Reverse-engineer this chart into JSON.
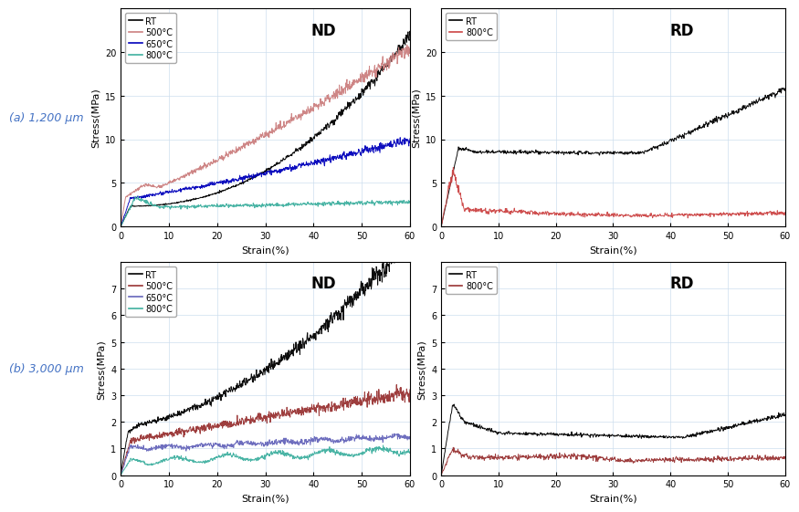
{
  "fig_width": 8.56,
  "fig_height": 5.56,
  "background_color": "#ffffff",
  "label_a": "(a) 1,200 μm",
  "label_b": "(b) 3,000 μm",
  "label_color": "#4472c4",
  "plots": [
    {
      "title": "ND",
      "xlabel": "Strain(%)",
      "ylabel": "Stress(MPa)",
      "xlim": [
        0,
        60
      ],
      "ylim": [
        0,
        25
      ],
      "yticks": [
        0,
        5,
        10,
        15,
        20
      ],
      "xticks": [
        0,
        10,
        20,
        30,
        40,
        50,
        60
      ],
      "legend": [
        "RT",
        "500°C",
        "650°C",
        "800°C"
      ],
      "legend_colors": [
        "#000000",
        "#cc8080",
        "#0000bb",
        "#40b0a0"
      ],
      "curves": [
        {
          "color": "#000000",
          "type": "nd_rt_1200"
        },
        {
          "color": "#cc8080",
          "type": "nd_500_1200"
        },
        {
          "color": "#0000bb",
          "type": "nd_650_1200"
        },
        {
          "color": "#40b0a0",
          "type": "nd_800_1200"
        }
      ]
    },
    {
      "title": "RD",
      "xlabel": "Strain(%)",
      "ylabel": "Stress(MPa)",
      "xlim": [
        0,
        60
      ],
      "ylim": [
        0,
        25
      ],
      "yticks": [
        0,
        5,
        10,
        15,
        20
      ],
      "xticks": [
        0,
        10,
        20,
        30,
        40,
        50,
        60
      ],
      "legend": [
        "RT",
        "800°C"
      ],
      "legend_colors": [
        "#000000",
        "#cc4444"
      ],
      "curves": [
        {
          "color": "#000000",
          "type": "rd_rt_1200"
        },
        {
          "color": "#cc4444",
          "type": "rd_800_1200"
        }
      ]
    },
    {
      "title": "ND",
      "xlabel": "Strain(%)",
      "ylabel": "Stress(MPa)",
      "xlim": [
        0,
        60
      ],
      "ylim": [
        0,
        8
      ],
      "yticks": [
        0,
        1,
        2,
        3,
        4,
        5,
        6,
        7
      ],
      "xticks": [
        0,
        10,
        20,
        30,
        40,
        50,
        60
      ],
      "legend": [
        "RT",
        "500°C",
        "650°C",
        "800°C"
      ],
      "legend_colors": [
        "#000000",
        "#993333",
        "#6666bb",
        "#40b0a0"
      ],
      "curves": [
        {
          "color": "#000000",
          "type": "nd_rt_3000"
        },
        {
          "color": "#993333",
          "type": "nd_500_3000"
        },
        {
          "color": "#6666bb",
          "type": "nd_650_3000"
        },
        {
          "color": "#40b0a0",
          "type": "nd_800_3000"
        }
      ]
    },
    {
      "title": "RD",
      "xlabel": "Strain(%)",
      "ylabel": "Stress(MPa)",
      "xlim": [
        0,
        60
      ],
      "ylim": [
        0,
        8
      ],
      "yticks": [
        0,
        1,
        2,
        3,
        4,
        5,
        6,
        7
      ],
      "xticks": [
        0,
        10,
        20,
        30,
        40,
        50,
        60
      ],
      "legend": [
        "RT",
        "800°C"
      ],
      "legend_colors": [
        "#000000",
        "#993333"
      ],
      "curves": [
        {
          "color": "#000000",
          "type": "rd_rt_3000"
        },
        {
          "color": "#993333",
          "type": "rd_800_3000"
        }
      ]
    }
  ]
}
